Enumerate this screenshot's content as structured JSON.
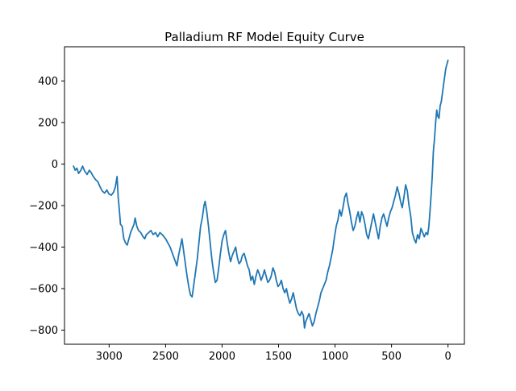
{
  "chart_data": {
    "type": "line",
    "title": "Palladium RF Model Equity Curve",
    "xlabel": "",
    "ylabel": "",
    "x_inverted": true,
    "xlim": [
      3395,
      -145
    ],
    "ylim": [
      -868,
      565
    ],
    "grid": false,
    "legend": "none",
    "line_color": "#1f77b4",
    "x_ticks": [
      {
        "value": 3000,
        "label": "3000"
      },
      {
        "value": 2500,
        "label": "2500"
      },
      {
        "value": 2000,
        "label": "2000"
      },
      {
        "value": 1500,
        "label": "1500"
      },
      {
        "value": 1000,
        "label": "1000"
      },
      {
        "value": 500,
        "label": "500"
      },
      {
        "value": 0,
        "label": "0"
      }
    ],
    "y_ticks": [
      {
        "value": 400,
        "label": "400"
      },
      {
        "value": 200,
        "label": "200"
      },
      {
        "value": 0,
        "label": "0"
      },
      {
        "value": -200,
        "label": "−200"
      },
      {
        "value": -400,
        "label": "−400"
      },
      {
        "value": -600,
        "label": "−600"
      },
      {
        "value": -800,
        "label": "−800"
      }
    ],
    "series": [
      {
        "name": "",
        "points": [
          [
            3315,
            -10
          ],
          [
            3300,
            -30
          ],
          [
            3285,
            -20
          ],
          [
            3270,
            -45
          ],
          [
            3250,
            -30
          ],
          [
            3235,
            -10
          ],
          [
            3215,
            -35
          ],
          [
            3195,
            -50
          ],
          [
            3175,
            -30
          ],
          [
            3160,
            -40
          ],
          [
            3140,
            -60
          ],
          [
            3120,
            -75
          ],
          [
            3100,
            -85
          ],
          [
            3080,
            -110
          ],
          [
            3060,
            -130
          ],
          [
            3040,
            -140
          ],
          [
            3020,
            -125
          ],
          [
            3000,
            -145
          ],
          [
            2980,
            -150
          ],
          [
            2960,
            -135
          ],
          [
            2945,
            -110
          ],
          [
            2930,
            -60
          ],
          [
            2920,
            -160
          ],
          [
            2910,
            -220
          ],
          [
            2900,
            -290
          ],
          [
            2885,
            -300
          ],
          [
            2870,
            -360
          ],
          [
            2855,
            -380
          ],
          [
            2840,
            -390
          ],
          [
            2825,
            -360
          ],
          [
            2810,
            -330
          ],
          [
            2795,
            -310
          ],
          [
            2780,
            -290
          ],
          [
            2770,
            -260
          ],
          [
            2755,
            -300
          ],
          [
            2740,
            -320
          ],
          [
            2720,
            -330
          ],
          [
            2700,
            -350
          ],
          [
            2685,
            -360
          ],
          [
            2670,
            -340
          ],
          [
            2650,
            -330
          ],
          [
            2630,
            -320
          ],
          [
            2610,
            -340
          ],
          [
            2590,
            -330
          ],
          [
            2570,
            -350
          ],
          [
            2550,
            -330
          ],
          [
            2530,
            -340
          ],
          [
            2515,
            -350
          ],
          [
            2500,
            -360
          ],
          [
            2480,
            -380
          ],
          [
            2460,
            -400
          ],
          [
            2440,
            -430
          ],
          [
            2420,
            -460
          ],
          [
            2400,
            -490
          ],
          [
            2385,
            -440
          ],
          [
            2370,
            -400
          ],
          [
            2355,
            -360
          ],
          [
            2340,
            -420
          ],
          [
            2325,
            -480
          ],
          [
            2310,
            -540
          ],
          [
            2295,
            -590
          ],
          [
            2280,
            -630
          ],
          [
            2265,
            -640
          ],
          [
            2250,
            -580
          ],
          [
            2235,
            -520
          ],
          [
            2220,
            -460
          ],
          [
            2205,
            -380
          ],
          [
            2190,
            -300
          ],
          [
            2175,
            -260
          ],
          [
            2160,
            -200
          ],
          [
            2150,
            -180
          ],
          [
            2135,
            -230
          ],
          [
            2120,
            -300
          ],
          [
            2105,
            -380
          ],
          [
            2090,
            -460
          ],
          [
            2075,
            -520
          ],
          [
            2060,
            -570
          ],
          [
            2045,
            -560
          ],
          [
            2030,
            -500
          ],
          [
            2015,
            -430
          ],
          [
            2000,
            -370
          ],
          [
            1985,
            -340
          ],
          [
            1970,
            -320
          ],
          [
            1955,
            -380
          ],
          [
            1940,
            -430
          ],
          [
            1925,
            -470
          ],
          [
            1910,
            -440
          ],
          [
            1895,
            -420
          ],
          [
            1880,
            -400
          ],
          [
            1865,
            -450
          ],
          [
            1850,
            -480
          ],
          [
            1835,
            -470
          ],
          [
            1820,
            -440
          ],
          [
            1805,
            -430
          ],
          [
            1790,
            -460
          ],
          [
            1775,
            -490
          ],
          [
            1760,
            -510
          ],
          [
            1745,
            -560
          ],
          [
            1730,
            -540
          ],
          [
            1715,
            -580
          ],
          [
            1700,
            -540
          ],
          [
            1685,
            -510
          ],
          [
            1670,
            -530
          ],
          [
            1655,
            -560
          ],
          [
            1640,
            -540
          ],
          [
            1625,
            -510
          ],
          [
            1610,
            -540
          ],
          [
            1595,
            -570
          ],
          [
            1580,
            -560
          ],
          [
            1565,
            -540
          ],
          [
            1550,
            -500
          ],
          [
            1535,
            -520
          ],
          [
            1520,
            -560
          ],
          [
            1505,
            -590
          ],
          [
            1490,
            -580
          ],
          [
            1475,
            -560
          ],
          [
            1460,
            -600
          ],
          [
            1445,
            -620
          ],
          [
            1430,
            -600
          ],
          [
            1415,
            -640
          ],
          [
            1400,
            -670
          ],
          [
            1385,
            -650
          ],
          [
            1370,
            -620
          ],
          [
            1355,
            -660
          ],
          [
            1340,
            -700
          ],
          [
            1325,
            -720
          ],
          [
            1310,
            -730
          ],
          [
            1295,
            -710
          ],
          [
            1280,
            -730
          ],
          [
            1270,
            -790
          ],
          [
            1260,
            -760
          ],
          [
            1245,
            -740
          ],
          [
            1230,
            -720
          ],
          [
            1215,
            -750
          ],
          [
            1200,
            -780
          ],
          [
            1185,
            -760
          ],
          [
            1170,
            -720
          ],
          [
            1155,
            -690
          ],
          [
            1140,
            -660
          ],
          [
            1125,
            -620
          ],
          [
            1110,
            -600
          ],
          [
            1095,
            -580
          ],
          [
            1080,
            -560
          ],
          [
            1065,
            -520
          ],
          [
            1050,
            -490
          ],
          [
            1035,
            -450
          ],
          [
            1020,
            -410
          ],
          [
            1005,
            -350
          ],
          [
            990,
            -300
          ],
          [
            975,
            -270
          ],
          [
            960,
            -220
          ],
          [
            945,
            -250
          ],
          [
            930,
            -210
          ],
          [
            915,
            -160
          ],
          [
            900,
            -140
          ],
          [
            885,
            -190
          ],
          [
            870,
            -230
          ],
          [
            855,
            -280
          ],
          [
            840,
            -320
          ],
          [
            825,
            -300
          ],
          [
            810,
            -260
          ],
          [
            795,
            -230
          ],
          [
            780,
            -280
          ],
          [
            765,
            -230
          ],
          [
            750,
            -250
          ],
          [
            735,
            -290
          ],
          [
            720,
            -340
          ],
          [
            705,
            -360
          ],
          [
            690,
            -320
          ],
          [
            675,
            -280
          ],
          [
            660,
            -240
          ],
          [
            645,
            -280
          ],
          [
            630,
            -320
          ],
          [
            615,
            -360
          ],
          [
            600,
            -300
          ],
          [
            585,
            -260
          ],
          [
            570,
            -240
          ],
          [
            555,
            -270
          ],
          [
            540,
            -300
          ],
          [
            525,
            -260
          ],
          [
            510,
            -230
          ],
          [
            495,
            -210
          ],
          [
            480,
            -180
          ],
          [
            465,
            -150
          ],
          [
            450,
            -110
          ],
          [
            435,
            -140
          ],
          [
            420,
            -180
          ],
          [
            405,
            -210
          ],
          [
            390,
            -160
          ],
          [
            375,
            -100
          ],
          [
            360,
            -130
          ],
          [
            345,
            -200
          ],
          [
            330,
            -250
          ],
          [
            315,
            -330
          ],
          [
            300,
            -360
          ],
          [
            285,
            -380
          ],
          [
            270,
            -340
          ],
          [
            255,
            -360
          ],
          [
            240,
            -310
          ],
          [
            225,
            -330
          ],
          [
            210,
            -350
          ],
          [
            195,
            -330
          ],
          [
            180,
            -340
          ],
          [
            170,
            -300
          ],
          [
            160,
            -230
          ],
          [
            150,
            -150
          ],
          [
            140,
            -60
          ],
          [
            130,
            60
          ],
          [
            120,
            120
          ],
          [
            110,
            200
          ],
          [
            100,
            260
          ],
          [
            90,
            230
          ],
          [
            80,
            220
          ],
          [
            70,
            280
          ],
          [
            60,
            300
          ],
          [
            50,
            340
          ],
          [
            40,
            380
          ],
          [
            30,
            420
          ],
          [
            20,
            460
          ],
          [
            10,
            480
          ],
          [
            0,
            500
          ]
        ]
      }
    ]
  }
}
